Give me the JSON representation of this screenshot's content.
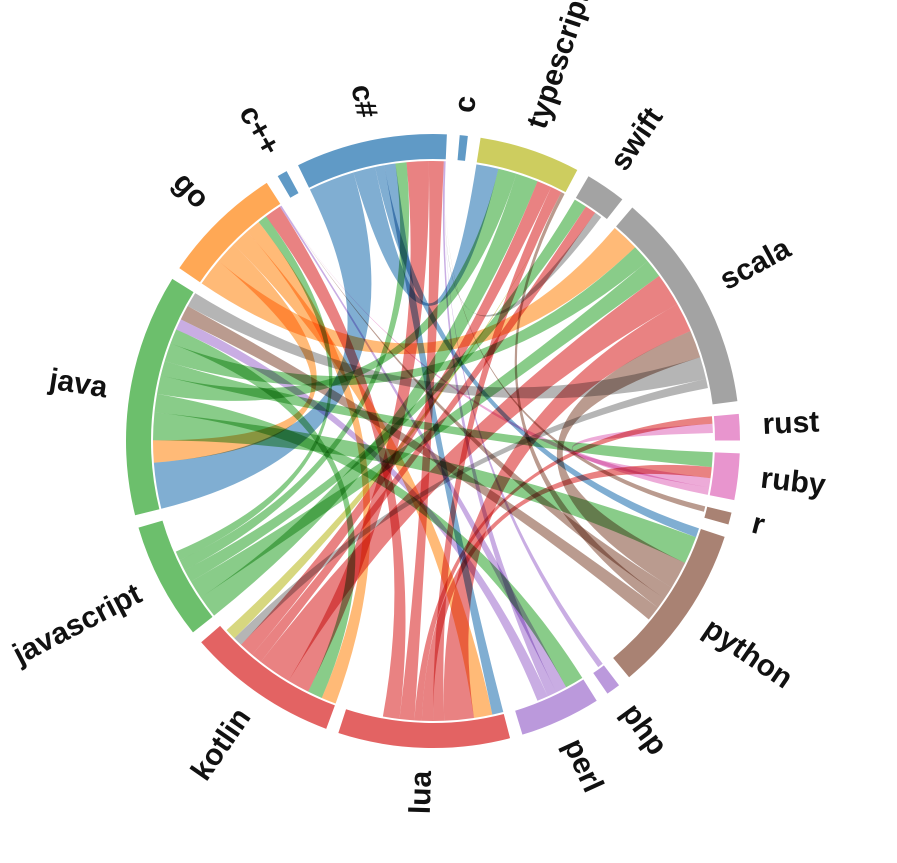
{
  "chart_data": {
    "type": "chord",
    "title": "",
    "groups": [
      {
        "name": "java",
        "color": "#5cb85c",
        "size": 12
      },
      {
        "name": "go",
        "color": "#ff9f43",
        "size": 6
      },
      {
        "name": "c++",
        "color": "#4f8fc0",
        "size": 0.5
      },
      {
        "name": "c#",
        "color": "#4f8fc0",
        "size": 7.5
      },
      {
        "name": "c",
        "color": "#4f8fc0",
        "size": 0.4
      },
      {
        "name": "typescript",
        "color": "#c8c84e",
        "size": 5
      },
      {
        "name": "swift",
        "color": "#999999",
        "size": 2
      },
      {
        "name": "scala",
        "color": "#999999",
        "size": 11
      },
      {
        "name": "rust",
        "color": "#e68ac9",
        "size": 1.3
      },
      {
        "name": "ruby",
        "color": "#e68ac9",
        "size": 2.3
      },
      {
        "name": "r",
        "color": "#a07464",
        "size": 0.6
      },
      {
        "name": "python",
        "color": "#a07464",
        "size": 8.4
      },
      {
        "name": "php",
        "color": "#b48ed8",
        "size": 0.7
      },
      {
        "name": "perl",
        "color": "#b48ed8",
        "size": 4
      },
      {
        "name": "lua",
        "color": "#e05252",
        "size": 8.5
      },
      {
        "name": "kotlin",
        "color": "#e05252",
        "size": 7.5
      },
      {
        "name": "javascript",
        "color": "#5cb85c",
        "size": 5.8
      }
    ],
    "links": [
      {
        "source": "c#",
        "target": "java",
        "value": 2.5
      },
      {
        "source": "c#",
        "target": "typescript",
        "value": 1.2
      },
      {
        "source": "c#",
        "target": "python",
        "value": 0.5
      },
      {
        "source": "c#",
        "target": "lua",
        "value": 0.6
      },
      {
        "source": "go",
        "target": "scala",
        "value": 1.5
      },
      {
        "source": "go",
        "target": "java",
        "value": 1.2
      },
      {
        "source": "go",
        "target": "lua",
        "value": 1.0
      },
      {
        "source": "go",
        "target": "kotlin",
        "value": 0.8
      },
      {
        "source": "java",
        "target": "python",
        "value": 1.5
      },
      {
        "source": "java",
        "target": "perl",
        "value": 1.0
      },
      {
        "source": "java",
        "target": "typescript",
        "value": 1.0
      },
      {
        "source": "java",
        "target": "ruby",
        "value": 0.8
      },
      {
        "source": "java",
        "target": "scala",
        "value": 1.0
      },
      {
        "source": "java",
        "target": "kotlin",
        "value": 0.8
      },
      {
        "source": "javascript",
        "target": "typescript",
        "value": 1.2
      },
      {
        "source": "javascript",
        "target": "scala",
        "value": 1.0
      },
      {
        "source": "javascript",
        "target": "swift",
        "value": 0.7
      },
      {
        "source": "javascript",
        "target": "c#",
        "value": 0.6
      },
      {
        "source": "javascript",
        "target": "go",
        "value": 0.5
      },
      {
        "source": "kotlin",
        "target": "c#",
        "value": 1.2
      },
      {
        "source": "kotlin",
        "target": "scala",
        "value": 1.8
      },
      {
        "source": "kotlin",
        "target": "swift",
        "value": 0.6
      },
      {
        "source": "kotlin",
        "target": "typescript",
        "value": 0.8
      },
      {
        "source": "lua",
        "target": "scala",
        "value": 1.6
      },
      {
        "source": "lua",
        "target": "typescript",
        "value": 0.6
      },
      {
        "source": "lua",
        "target": "ruby",
        "value": 0.6
      },
      {
        "source": "lua",
        "target": "rust",
        "value": 0.4
      },
      {
        "source": "lua",
        "target": "c#",
        "value": 0.8
      },
      {
        "source": "lua",
        "target": "go",
        "value": 0.9
      },
      {
        "source": "perl",
        "target": "go",
        "value": 0.6
      },
      {
        "source": "perl",
        "target": "c#",
        "value": 0.5
      },
      {
        "source": "perl",
        "target": "java",
        "value": 0.6
      },
      {
        "source": "php",
        "target": "c#",
        "value": 0.3
      },
      {
        "source": "python",
        "target": "scala",
        "value": 1.5
      },
      {
        "source": "python",
        "target": "go",
        "value": 0.7
      },
      {
        "source": "python",
        "target": "typescript",
        "value": 0.6
      },
      {
        "source": "python",
        "target": "java",
        "value": 0.8
      },
      {
        "source": "ruby",
        "target": "rust",
        "value": 0.5
      },
      {
        "source": "ruby",
        "target": "go",
        "value": 0.4
      },
      {
        "source": "r",
        "target": "c#",
        "value": 0.3
      },
      {
        "source": "scala",
        "target": "java",
        "value": 1.2
      },
      {
        "source": "scala",
        "target": "kotlin",
        "value": 0.5
      },
      {
        "source": "typescript",
        "target": "kotlin",
        "value": 0.6
      },
      {
        "source": "swift",
        "target": "c#",
        "value": 0.4
      }
    ]
  }
}
